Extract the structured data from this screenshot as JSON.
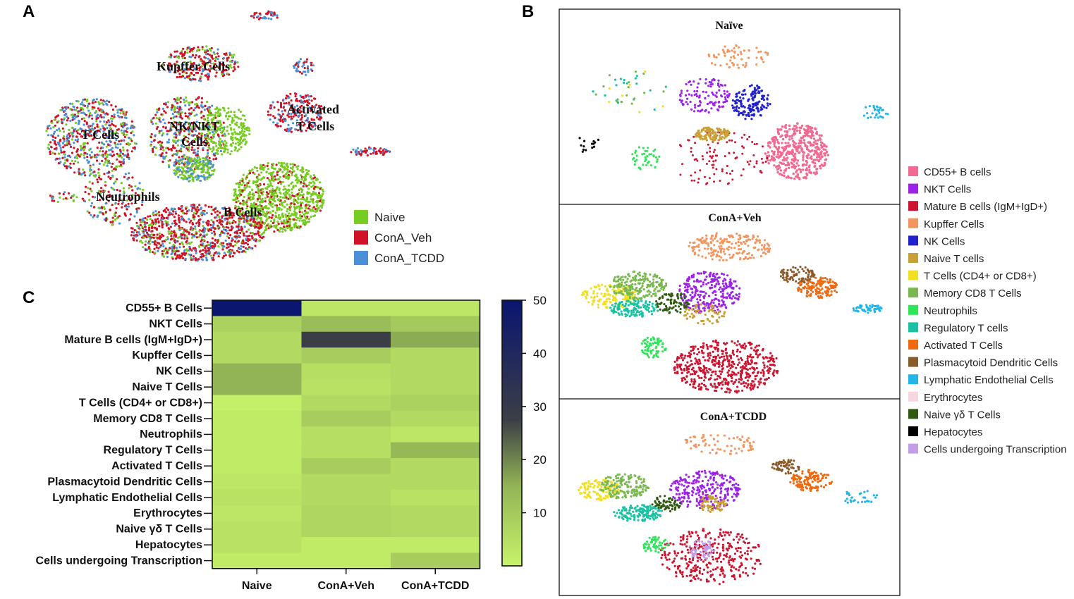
{
  "panels": {
    "a": {
      "letter": "A"
    },
    "b": {
      "letter": "B"
    },
    "c": {
      "letter": "C"
    }
  },
  "colors": {
    "naive": "#77cc22",
    "conA_veh": "#d11226",
    "conA_tcdd": "#4a90d9",
    "heat_low": "#c7f36a",
    "heat_mid": "#9cbb5c",
    "heat_high": "#0a1670"
  },
  "chart_data": [
    {
      "type": "scatter",
      "title": "A",
      "description_free": false,
      "legend": [
        {
          "name": "Naive",
          "color": "#77cc22"
        },
        {
          "name": "ConA_Veh",
          "color": "#d11226"
        },
        {
          "name": "ConA_TCDD",
          "color": "#4a90d9"
        }
      ],
      "cluster_labels": [
        "Kupffer Cells",
        "Activated",
        "T Cells",
        "T Cells",
        "NK/NKT",
        "Cells",
        "Neutrophils",
        "B Cells"
      ]
    },
    {
      "type": "scatter",
      "title": "B",
      "subplots": [
        "Naïve",
        "ConA+Veh",
        "ConA+TCDD"
      ],
      "legend": [
        {
          "name": "CD55+ B cells",
          "color": "#f06a91"
        },
        {
          "name": "NKT Cells",
          "color": "#9b22e6"
        },
        {
          "name": "Mature B cells (IgM+IgD+)",
          "color": "#cc1530"
        },
        {
          "name": "Kupffer Cells",
          "color": "#f29660"
        },
        {
          "name": "NK Cells",
          "color": "#2020cc"
        },
        {
          "name": "Naive T cells",
          "color": "#c9a033"
        },
        {
          "name": "T Cells (CD4+ or CD8+)",
          "color": "#f2e020"
        },
        {
          "name": "Memory CD8 T Cells",
          "color": "#78b84e"
        },
        {
          "name": "Neutrophils",
          "color": "#2ee65a"
        },
        {
          "name": "Regulatory T cells",
          "color": "#19c2a2"
        },
        {
          "name": "Activated T Cells",
          "color": "#ee6a10"
        },
        {
          "name": "Plasmacytoid Dendritic Cells",
          "color": "#8b5a2b"
        },
        {
          "name": "Lymphatic Endothelial Cells",
          "color": "#22b5e8"
        },
        {
          "name": "Erythrocytes",
          "color": "#f8d6df"
        },
        {
          "name": "Naive γδ T Cells",
          "color": "#2f5a10"
        },
        {
          "name": "Hepatocytes",
          "color": "#000000"
        },
        {
          "name": "Cells undergoing Transcription",
          "color": "#c29ee8"
        }
      ]
    },
    {
      "type": "heatmap",
      "title": "C",
      "rows": [
        "CD55+ B Cells",
        "NKT Cells",
        "Mature B cells (IgM+IgD+)",
        "Kupffer Cells",
        "NK Cells",
        "Naive T Cells",
        "T Cells (CD4+ or CD8+)",
        "Memory CD8 T Cells",
        "Neutrophils",
        "Regulatory T Cells",
        "Activated T Cells",
        "Plasmacytoid Dendritic Cells",
        "Lymphatic Endothelial Cells",
        "Erythrocytes",
        "Naive γδ T Cells",
        "Hepatocytes",
        "Cells undergoing Transcription"
      ],
      "columns": [
        "Naive",
        "ConA+Veh",
        "ConA+TCDD"
      ],
      "values": [
        [
          50,
          3,
          3
        ],
        [
          8,
          13,
          10
        ],
        [
          6,
          28,
          16
        ],
        [
          6,
          9,
          6
        ],
        [
          15,
          5,
          6
        ],
        [
          15,
          4,
          6
        ],
        [
          1,
          6,
          8
        ],
        [
          2,
          9,
          6
        ],
        [
          2,
          5,
          3
        ],
        [
          2,
          5,
          14
        ],
        [
          2,
          9,
          6
        ],
        [
          3,
          6,
          6
        ],
        [
          4,
          6,
          4
        ],
        [
          3,
          7,
          6
        ],
        [
          4,
          7,
          6
        ],
        [
          4,
          2,
          2
        ],
        [
          2,
          2,
          9
        ]
      ],
      "colorbar": {
        "min": 0,
        "max": 50,
        "ticks": [
          10,
          20,
          30,
          40,
          50
        ]
      }
    }
  ]
}
